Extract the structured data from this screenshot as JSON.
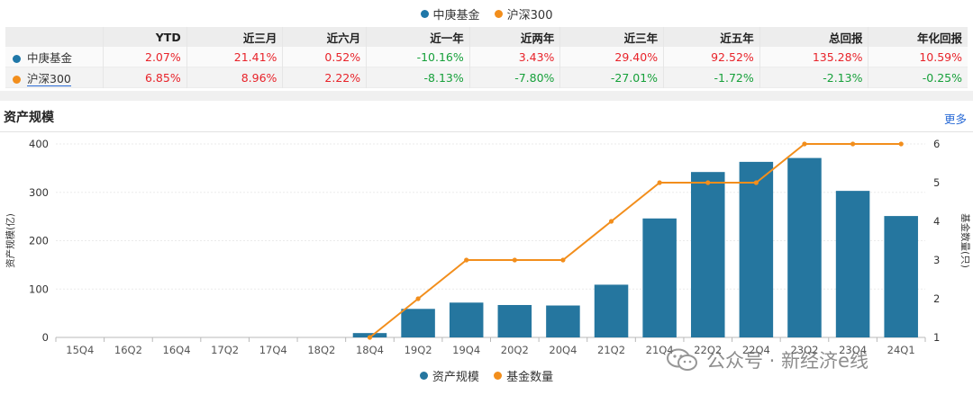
{
  "top_legend": [
    {
      "label": "中庚基金",
      "color": "#1f77a8"
    },
    {
      "label": "沪深300",
      "color": "#f28e1c"
    }
  ],
  "perf_table": {
    "headers": [
      "",
      "YTD",
      "近三月",
      "近六月",
      "近一年",
      "近两年",
      "近三年",
      "近五年",
      "总回报",
      "年化回报"
    ],
    "rows": [
      {
        "name": "中庚基金",
        "color": "#1f77a8",
        "values": [
          "2.07%",
          "21.41%",
          "0.52%",
          "-10.16%",
          "3.43%",
          "29.40%",
          "92.52%",
          "135.28%",
          "10.59%"
        ]
      },
      {
        "name": "沪深300",
        "color": "#f28e1c",
        "values": [
          "6.85%",
          "8.96%",
          "2.22%",
          "-8.13%",
          "-7.80%",
          "-27.01%",
          "-1.72%",
          "-2.13%",
          "-0.25%"
        ]
      }
    ]
  },
  "section": {
    "title": "资产规模",
    "more": "更多"
  },
  "watermark": "公众号 · 新经济e线",
  "chart_data": {
    "type": "bar",
    "categories": [
      "15Q4",
      "16Q2",
      "16Q4",
      "17Q2",
      "17Q4",
      "18Q2",
      "18Q4",
      "19Q2",
      "19Q4",
      "20Q2",
      "20Q4",
      "21Q2",
      "21Q4",
      "22Q2",
      "22Q4",
      "23Q2",
      "23Q4",
      "24Q1"
    ],
    "series": [
      {
        "name": "资产规模",
        "type": "bar",
        "axis": "left",
        "color": "#25769f",
        "values": [
          null,
          null,
          null,
          null,
          null,
          null,
          9,
          59,
          72,
          67,
          66,
          109,
          246,
          342,
          363,
          371,
          303,
          251
        ]
      },
      {
        "name": "基金数量",
        "type": "line",
        "axis": "right",
        "color": "#f28e1c",
        "values": [
          null,
          null,
          null,
          null,
          null,
          null,
          1,
          2,
          3,
          3,
          3,
          4,
          5,
          5,
          5,
          6,
          6,
          6
        ]
      }
    ],
    "ylabel": "资产规模(亿)",
    "y2label": "基金数量(只)",
    "ylim": [
      0,
      400
    ],
    "yticks": [
      0,
      100,
      200,
      300,
      400
    ],
    "y2lim": [
      1,
      6
    ],
    "y2ticks": [
      1,
      2,
      3,
      4,
      5,
      6
    ],
    "grid": true,
    "legend": "bottom"
  }
}
